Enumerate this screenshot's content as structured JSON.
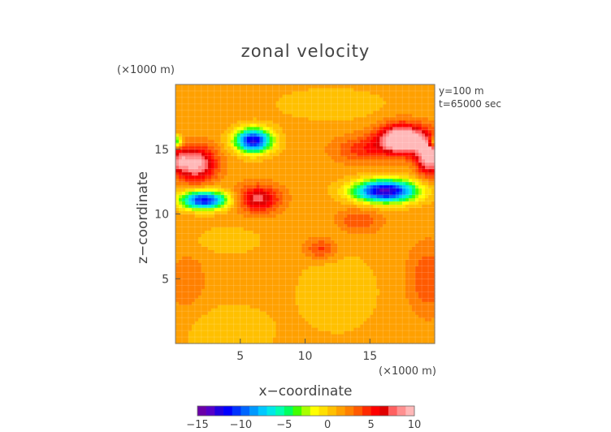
{
  "chart_data": {
    "type": "heatmap",
    "title": "zonal velocity",
    "xlabel": "x−coordinate",
    "ylabel": "z−coordinate",
    "x_unit_label": "(×1000 m)",
    "y_unit_label": "(×1000 m)",
    "annotations": [
      "y=100 m",
      "t=65000 sec"
    ],
    "xlim": [
      0,
      20
    ],
    "ylim": [
      0,
      20
    ],
    "x_ticks": [
      5,
      10,
      15
    ],
    "y_ticks": [
      5,
      10,
      15
    ],
    "x_tick_labels": [
      "5",
      "10",
      "15"
    ],
    "y_tick_labels": [
      "5",
      "10",
      "15"
    ],
    "grid": true,
    "background_value": 1.5,
    "colorbar": {
      "placement": "bottom",
      "min": -15,
      "max": 10,
      "tick_values": [
        -15,
        -10,
        -5,
        0,
        5,
        10
      ],
      "tick_labels": [
        "−15",
        "−10",
        "−5",
        "0",
        "5",
        "10"
      ],
      "colors": [
        "#6a00a8",
        "#5500c8",
        "#2200e0",
        "#0000ff",
        "#0033ff",
        "#0066ff",
        "#0099ff",
        "#00c8ff",
        "#00e8e8",
        "#00ffb0",
        "#00ff60",
        "#40ff00",
        "#a8ff00",
        "#ffff00",
        "#ffe000",
        "#ffc000",
        "#ffa000",
        "#ff8000",
        "#ff5a00",
        "#ff2a00",
        "#ff0000",
        "#e00000",
        "#ff6060",
        "#ff9090",
        "#ffb8b8"
      ]
    },
    "features": [
      {
        "x": 17.5,
        "z": 15.8,
        "value": 11,
        "sx": 1.8,
        "sy": 1.1
      },
      {
        "x": 19.6,
        "z": 14.5,
        "value": 9,
        "sx": 1.0,
        "sy": 1.4
      },
      {
        "x": 1.6,
        "z": 13.9,
        "value": 8,
        "sx": 1.5,
        "sy": 1.3
      },
      {
        "x": 0.2,
        "z": 14.2,
        "value": 4,
        "sx": 0.8,
        "sy": 1.0
      },
      {
        "x": 6.4,
        "z": 11.2,
        "value": 6,
        "sx": 1.6,
        "sy": 1.0
      },
      {
        "x": 14.2,
        "z": 9.5,
        "value": 2.5,
        "sx": 1.6,
        "sy": 0.9
      },
      {
        "x": 11.2,
        "z": 7.3,
        "value": 3,
        "sx": 1.2,
        "sy": 0.8
      },
      {
        "x": 14.5,
        "z": 15.0,
        "value": 3,
        "sx": 2.2,
        "sy": 1.0
      },
      {
        "x": 6.0,
        "z": 15.7,
        "value": -14,
        "sx": 1.4,
        "sy": 0.9
      },
      {
        "x": 2.2,
        "z": 11.1,
        "value": -13,
        "sx": 1.8,
        "sy": 0.7
      },
      {
        "x": 16.2,
        "z": 11.8,
        "value": -15,
        "sx": 2.4,
        "sy": 0.85
      },
      {
        "x": 19.9,
        "z": 15.6,
        "value": -6,
        "sx": 0.4,
        "sy": 0.5
      },
      {
        "x": 0.1,
        "z": 15.6,
        "value": -6,
        "sx": 0.4,
        "sy": 0.5
      },
      {
        "x": 4.0,
        "z": 1.0,
        "value": -1.5,
        "sx": 3.5,
        "sy": 2.0
      },
      {
        "x": 12.5,
        "z": 4.0,
        "value": -1.5,
        "sx": 3.0,
        "sy": 3.0
      },
      {
        "x": 12.0,
        "z": 18.5,
        "value": -1.5,
        "sx": 4.0,
        "sy": 1.2
      },
      {
        "x": 4.0,
        "z": 8.0,
        "value": -1.5,
        "sx": 2.5,
        "sy": 1.0
      },
      {
        "x": 19.5,
        "z": 5.0,
        "value": 2.5,
        "sx": 1.5,
        "sy": 2.5
      },
      {
        "x": 1.0,
        "z": 4.5,
        "value": 1,
        "sx": 1.5,
        "sy": 3.0
      }
    ]
  }
}
